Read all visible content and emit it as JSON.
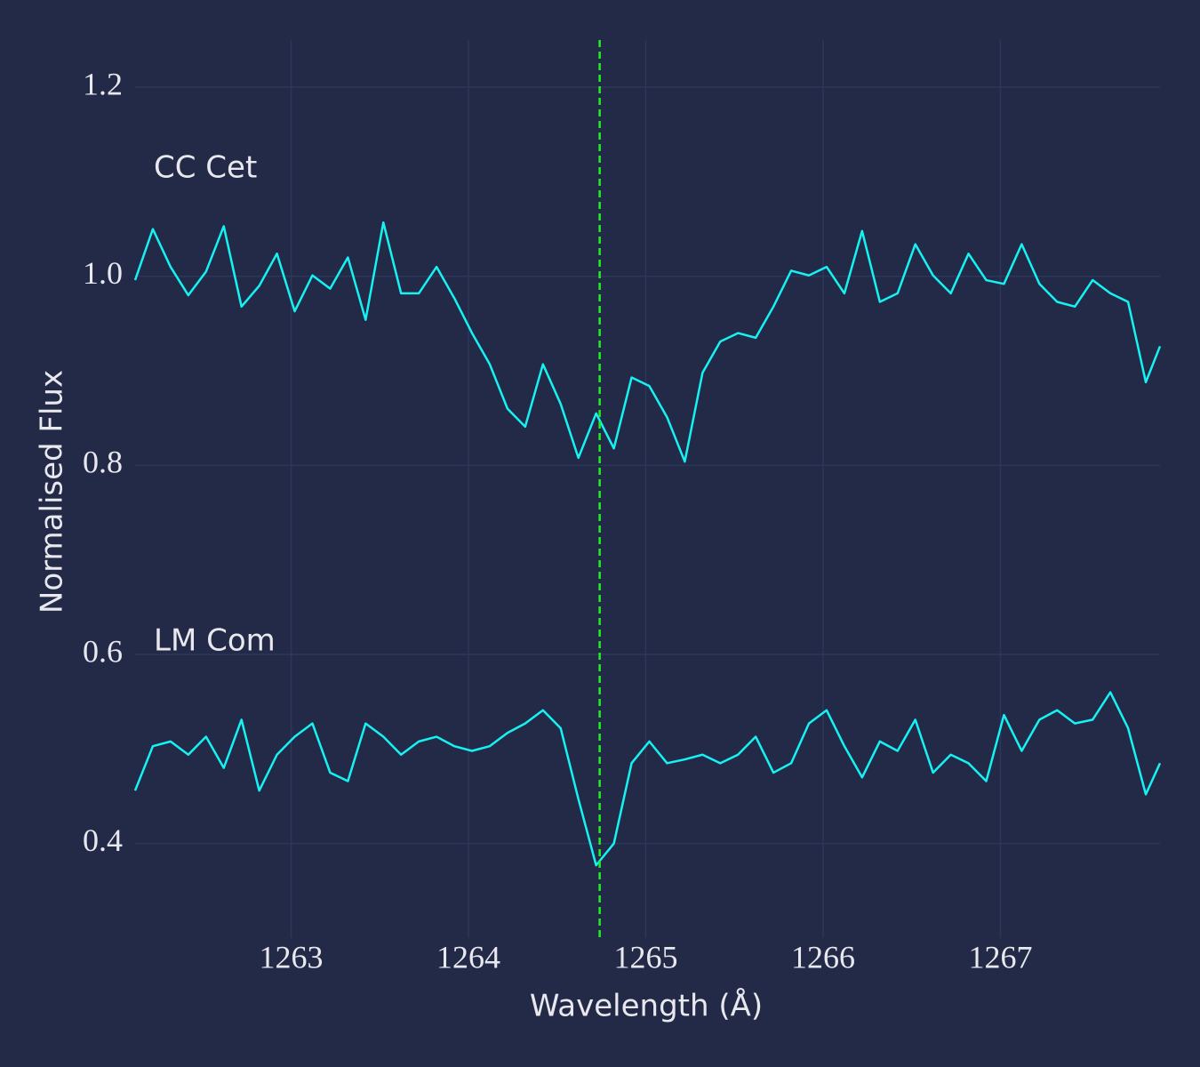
{
  "chart_data": {
    "type": "line",
    "xlabel": "Wavelength (Å)",
    "ylabel": "Normalised Flux",
    "x": [
      1262.12,
      1262.22,
      1262.32,
      1262.42,
      1262.52,
      1262.62,
      1262.72,
      1262.82,
      1262.92,
      1263.02,
      1263.12,
      1263.22,
      1263.32,
      1263.42,
      1263.52,
      1263.62,
      1263.72,
      1263.82,
      1263.92,
      1264.02,
      1264.12,
      1264.22,
      1264.32,
      1264.42,
      1264.52,
      1264.62,
      1264.72,
      1264.82,
      1264.92,
      1265.02,
      1265.12,
      1265.22,
      1265.32,
      1265.42,
      1265.52,
      1265.62,
      1265.72,
      1265.82,
      1265.92,
      1266.02,
      1266.12,
      1266.22,
      1266.32,
      1266.42,
      1266.52,
      1266.62,
      1266.72,
      1266.82,
      1266.92,
      1267.02,
      1267.12,
      1267.22,
      1267.32,
      1267.42,
      1267.52,
      1267.62,
      1267.72,
      1267.82,
      1267.9
    ],
    "series": [
      {
        "name": "CC Cet",
        "color": "#16f2f2",
        "values": [
          0.996,
          1.05,
          1.01,
          0.98,
          1.005,
          1.053,
          0.968,
          0.99,
          1.024,
          0.963,
          1.001,
          0.987,
          1.02,
          0.954,
          1.057,
          0.982,
          0.982,
          1.01,
          0.977,
          0.94,
          0.907,
          0.86,
          0.841,
          0.907,
          0.865,
          0.808,
          0.855,
          0.818,
          0.893,
          0.884,
          0.851,
          0.804,
          0.898,
          0.931,
          0.94,
          0.935,
          0.968,
          1.006,
          1.001,
          1.01,
          0.982,
          1.048,
          0.973,
          0.982,
          1.034,
          1.001,
          0.982,
          1.024,
          0.996,
          0.992,
          1.034,
          0.992,
          0.973,
          0.968,
          0.996,
          0.982,
          0.973,
          0.888,
          0.926
        ]
      },
      {
        "name": "LM Com",
        "color": "#16f2f2",
        "values": [
          0.456,
          0.503,
          0.508,
          0.494,
          0.513,
          0.48,
          0.531,
          0.456,
          0.494,
          0.513,
          0.527,
          0.475,
          0.466,
          0.527,
          0.513,
          0.494,
          0.508,
          0.513,
          0.503,
          0.498,
          0.503,
          0.517,
          0.527,
          0.541,
          0.522,
          0.447,
          0.377,
          0.4,
          0.485,
          0.508,
          0.485,
          0.489,
          0.494,
          0.485,
          0.494,
          0.513,
          0.475,
          0.485,
          0.527,
          0.541,
          0.503,
          0.47,
          0.508,
          0.498,
          0.531,
          0.475,
          0.494,
          0.485,
          0.466,
          0.536,
          0.498,
          0.531,
          0.541,
          0.527,
          0.531,
          0.56,
          0.522,
          0.452,
          0.485
        ]
      }
    ],
    "reference_line": {
      "x": 1264.74,
      "color": "#22ee22"
    },
    "xlim": [
      1262.12,
      1267.9
    ],
    "ylim": [
      0.3,
      1.25
    ],
    "xticks": [
      1263,
      1264,
      1265,
      1266,
      1267
    ],
    "yticks": [
      0.4,
      0.6,
      0.8,
      {
        "value": 1,
        "label": "1.0"
      },
      1.2
    ],
    "grid": true
  }
}
